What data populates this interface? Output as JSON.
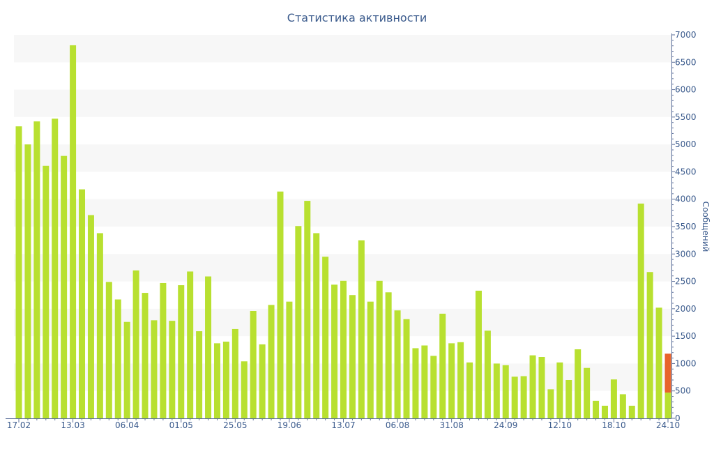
{
  "colors": {
    "bar": "#b8e030",
    "highlight": "#e8632a",
    "text": "#3a5a8c",
    "axis": "#5a6e99",
    "band": "#f7f7f7"
  },
  "chart_data": {
    "type": "bar",
    "title": "Статистика активности",
    "xlabel": "",
    "ylabel": "Сообщений",
    "ylim": [
      0,
      7000
    ],
    "yaxis_position": "right",
    "y_ticks": [
      0,
      500,
      1000,
      1500,
      2000,
      2500,
      3000,
      3500,
      4000,
      4500,
      5000,
      5500,
      6000,
      6500,
      7000
    ],
    "x_tick_labels": [
      {
        "index": 0,
        "label": "17.02"
      },
      {
        "index": 6,
        "label": "13.03"
      },
      {
        "index": 12,
        "label": "06.04"
      },
      {
        "index": 18,
        "label": "01.05"
      },
      {
        "index": 24,
        "label": "25.05"
      },
      {
        "index": 30,
        "label": "19.06"
      },
      {
        "index": 36,
        "label": "13.07"
      },
      {
        "index": 42,
        "label": "06.08"
      },
      {
        "index": 48,
        "label": "31.08"
      },
      {
        "index": 54,
        "label": "24.09"
      },
      {
        "index": 60,
        "label": "12.10"
      },
      {
        "index": 66,
        "label": "18.10"
      },
      {
        "index": 72,
        "label": "24.10"
      }
    ],
    "series": [
      {
        "values": [
          5330,
          5000,
          5420,
          4610,
          5470,
          4790,
          6810,
          4180,
          3710,
          3380,
          2490,
          2170,
          1760,
          2700,
          2290,
          1790,
          2470,
          1780,
          2430,
          2680,
          1590,
          2590,
          1370,
          1400,
          1630,
          1040,
          1960,
          1350,
          2070,
          4140,
          2130,
          3510,
          3970,
          3380,
          2950,
          2440,
          2510,
          2250,
          3250,
          2130,
          2510,
          2300,
          1970,
          1810,
          1280,
          1330,
          1140,
          1910,
          1370,
          1390,
          1020,
          2330,
          1600,
          1000,
          970,
          760,
          770,
          1150,
          1120,
          530,
          1020,
          700,
          1260,
          920,
          320,
          230,
          710,
          440,
          230,
          3920,
          2670,
          2020,
          470
        ]
      },
      {
        "values": [
          0,
          0,
          0,
          0,
          0,
          0,
          0,
          0,
          0,
          0,
          0,
          0,
          0,
          0,
          0,
          0,
          0,
          0,
          0,
          0,
          0,
          0,
          0,
          0,
          0,
          0,
          0,
          0,
          0,
          0,
          0,
          0,
          0,
          0,
          0,
          0,
          0,
          0,
          0,
          0,
          0,
          0,
          0,
          0,
          0,
          0,
          0,
          0,
          0,
          0,
          0,
          0,
          0,
          0,
          0,
          0,
          0,
          0,
          0,
          0,
          0,
          0,
          0,
          0,
          0,
          0,
          0,
          0,
          0,
          0,
          0,
          0,
          710
        ]
      }
    ],
    "grid": "alternating horizontal bands",
    "legend": "none"
  }
}
